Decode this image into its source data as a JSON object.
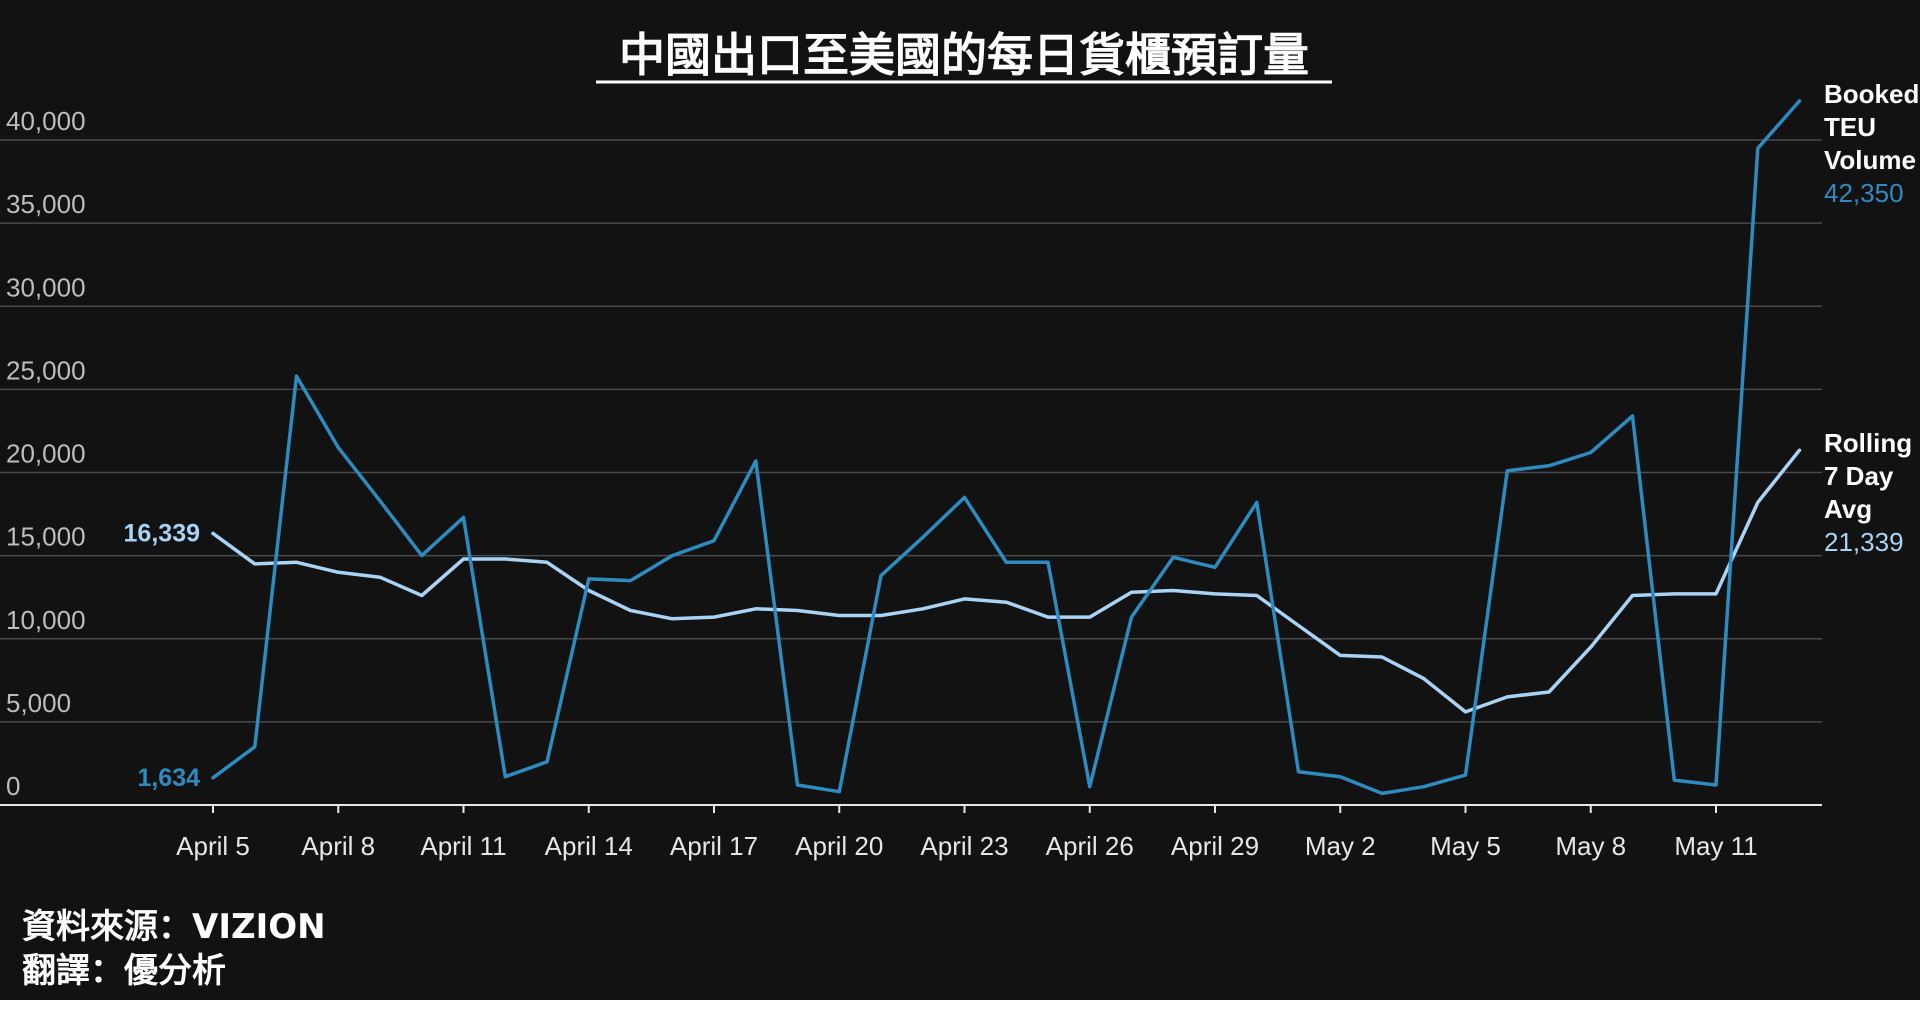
{
  "chart_data": {
    "type": "line",
    "title": "中國出口至美國的每日貨櫃預訂量",
    "x": [
      "April 5",
      "April 6",
      "April 7",
      "April 8",
      "April 9",
      "April 10",
      "April 11",
      "April 12",
      "April 13",
      "April 14",
      "April 15",
      "April 16",
      "April 17",
      "April 18",
      "April 19",
      "April 20",
      "April 21",
      "April 22",
      "April 23",
      "April 24",
      "April 25",
      "April 26",
      "April 27",
      "April 28",
      "April 29",
      "April 30",
      "May 1",
      "May 2",
      "May 3",
      "May 4",
      "May 5",
      "May 6",
      "May 7",
      "May 8",
      "May 9",
      "May 10",
      "May 11",
      "May 12",
      "May 13"
    ],
    "x_ticks": [
      "April 5",
      "April 8",
      "April 11",
      "April 14",
      "April 17",
      "April 20",
      "April 23",
      "April 26",
      "April 29",
      "May 2",
      "May 5",
      "May 8",
      "May 11"
    ],
    "y_ticks": [
      "0",
      "5,000",
      "10,000",
      "15,000",
      "20,000",
      "25,000",
      "30,000",
      "35,000",
      "40,000"
    ],
    "ylim": [
      0,
      40000
    ],
    "grid": true,
    "legend": "right end labels",
    "series": [
      {
        "name": "Booked TEU Volume",
        "name_lines": [
          "Booked",
          "TEU",
          "Volume"
        ],
        "end_label": "42,350",
        "start_label": "1,634",
        "color": "#2e8bc0",
        "values": [
          1634,
          3500,
          25800,
          21500,
          18300,
          15000,
          17300,
          1700,
          2600,
          13600,
          13500,
          15000,
          15900,
          20700,
          1200,
          800,
          13800,
          16100,
          18500,
          14600,
          14600,
          1100,
          11300,
          14900,
          14300,
          18200,
          2000,
          1700,
          700,
          1100,
          1800,
          20100,
          20400,
          21200,
          23400,
          1500,
          1200,
          39500,
          42350
        ]
      },
      {
        "name": "Rolling 7 Day Avg",
        "name_lines": [
          "Rolling",
          "7 Day",
          "Avg"
        ],
        "end_label": "21,339",
        "start_label": "16,339",
        "color": "#a9d3f5",
        "values": [
          16339,
          14500,
          14600,
          14000,
          13700,
          12600,
          14800,
          14800,
          14600,
          12900,
          11700,
          11200,
          11300,
          11800,
          11700,
          11400,
          11400,
          11800,
          12400,
          12200,
          11300,
          11300,
          12800,
          12900,
          12700,
          12600,
          10800,
          9000,
          8900,
          7600,
          5600,
          6500,
          6800,
          9500,
          12600,
          12700,
          12700,
          18200,
          21339
        ]
      }
    ]
  },
  "footer": {
    "source_line": "資料來源：VIZION",
    "translation_line": "翻譯：優分析"
  }
}
